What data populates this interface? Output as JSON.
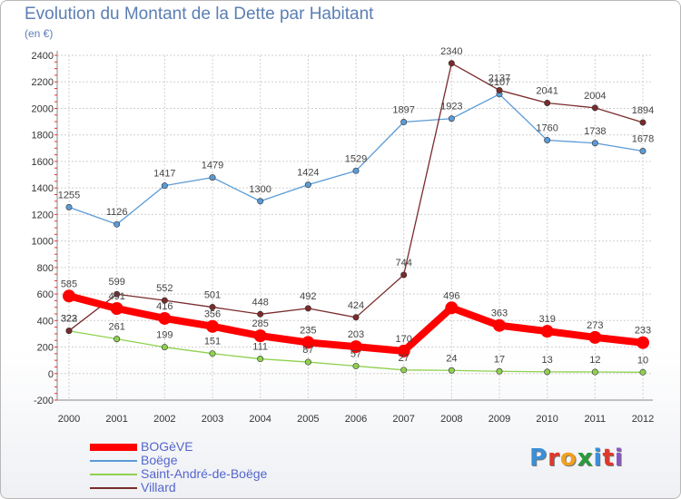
{
  "header": {
    "title": "Evolution du Montant de la Dette par Habitant",
    "unit": "(en €)"
  },
  "logo": {
    "letters": [
      "P",
      "r",
      "o",
      "x",
      "i",
      "t",
      "i"
    ],
    "colors": [
      "#3a8fd8",
      "#e0382a",
      "#f0a020",
      "#2a9a3a",
      "#3a8fd8",
      "#e0382a",
      "#8a56c2"
    ]
  },
  "chart_data": {
    "type": "line",
    "title": "Evolution du Montant de la Dette par Habitant",
    "ylabel": "(en €)",
    "xlabel": "",
    "x": [
      "2000",
      "2001",
      "2002",
      "2003",
      "2004",
      "2005",
      "2006",
      "2007",
      "2008",
      "2009",
      "2010",
      "2011",
      "2012"
    ],
    "ylim": [
      -200,
      2400
    ],
    "yticks": [
      -200,
      0,
      200,
      400,
      600,
      800,
      1000,
      1200,
      1400,
      1600,
      1800,
      2000,
      2200,
      2400
    ],
    "grid": true,
    "legend_position": "bottom-left",
    "series": [
      {
        "name": "BOGèVE",
        "color": "#ff0000",
        "emphasis": true,
        "values": [
          585,
          491,
          416,
          356,
          285,
          235,
          203,
          170,
          496,
          363,
          319,
          273,
          233
        ]
      },
      {
        "name": "Boëge",
        "color": "#5b9bd5",
        "emphasis": false,
        "values": [
          1255,
          1126,
          1417,
          1479,
          1300,
          1424,
          1529,
          1897,
          1923,
          2107,
          1760,
          1738,
          1678
        ]
      },
      {
        "name": "Saint-André-de-Boëge",
        "color": "#8fd14f",
        "emphasis": false,
        "values": [
          322,
          261,
          199,
          151,
          111,
          87,
          57,
          27,
          24,
          17,
          13,
          12,
          10
        ]
      },
      {
        "name": "Villard",
        "color": "#7a2b2b",
        "emphasis": false,
        "values": [
          323,
          599,
          552,
          501,
          448,
          492,
          424,
          744,
          2340,
          2137,
          2041,
          2004,
          1894
        ]
      }
    ]
  }
}
